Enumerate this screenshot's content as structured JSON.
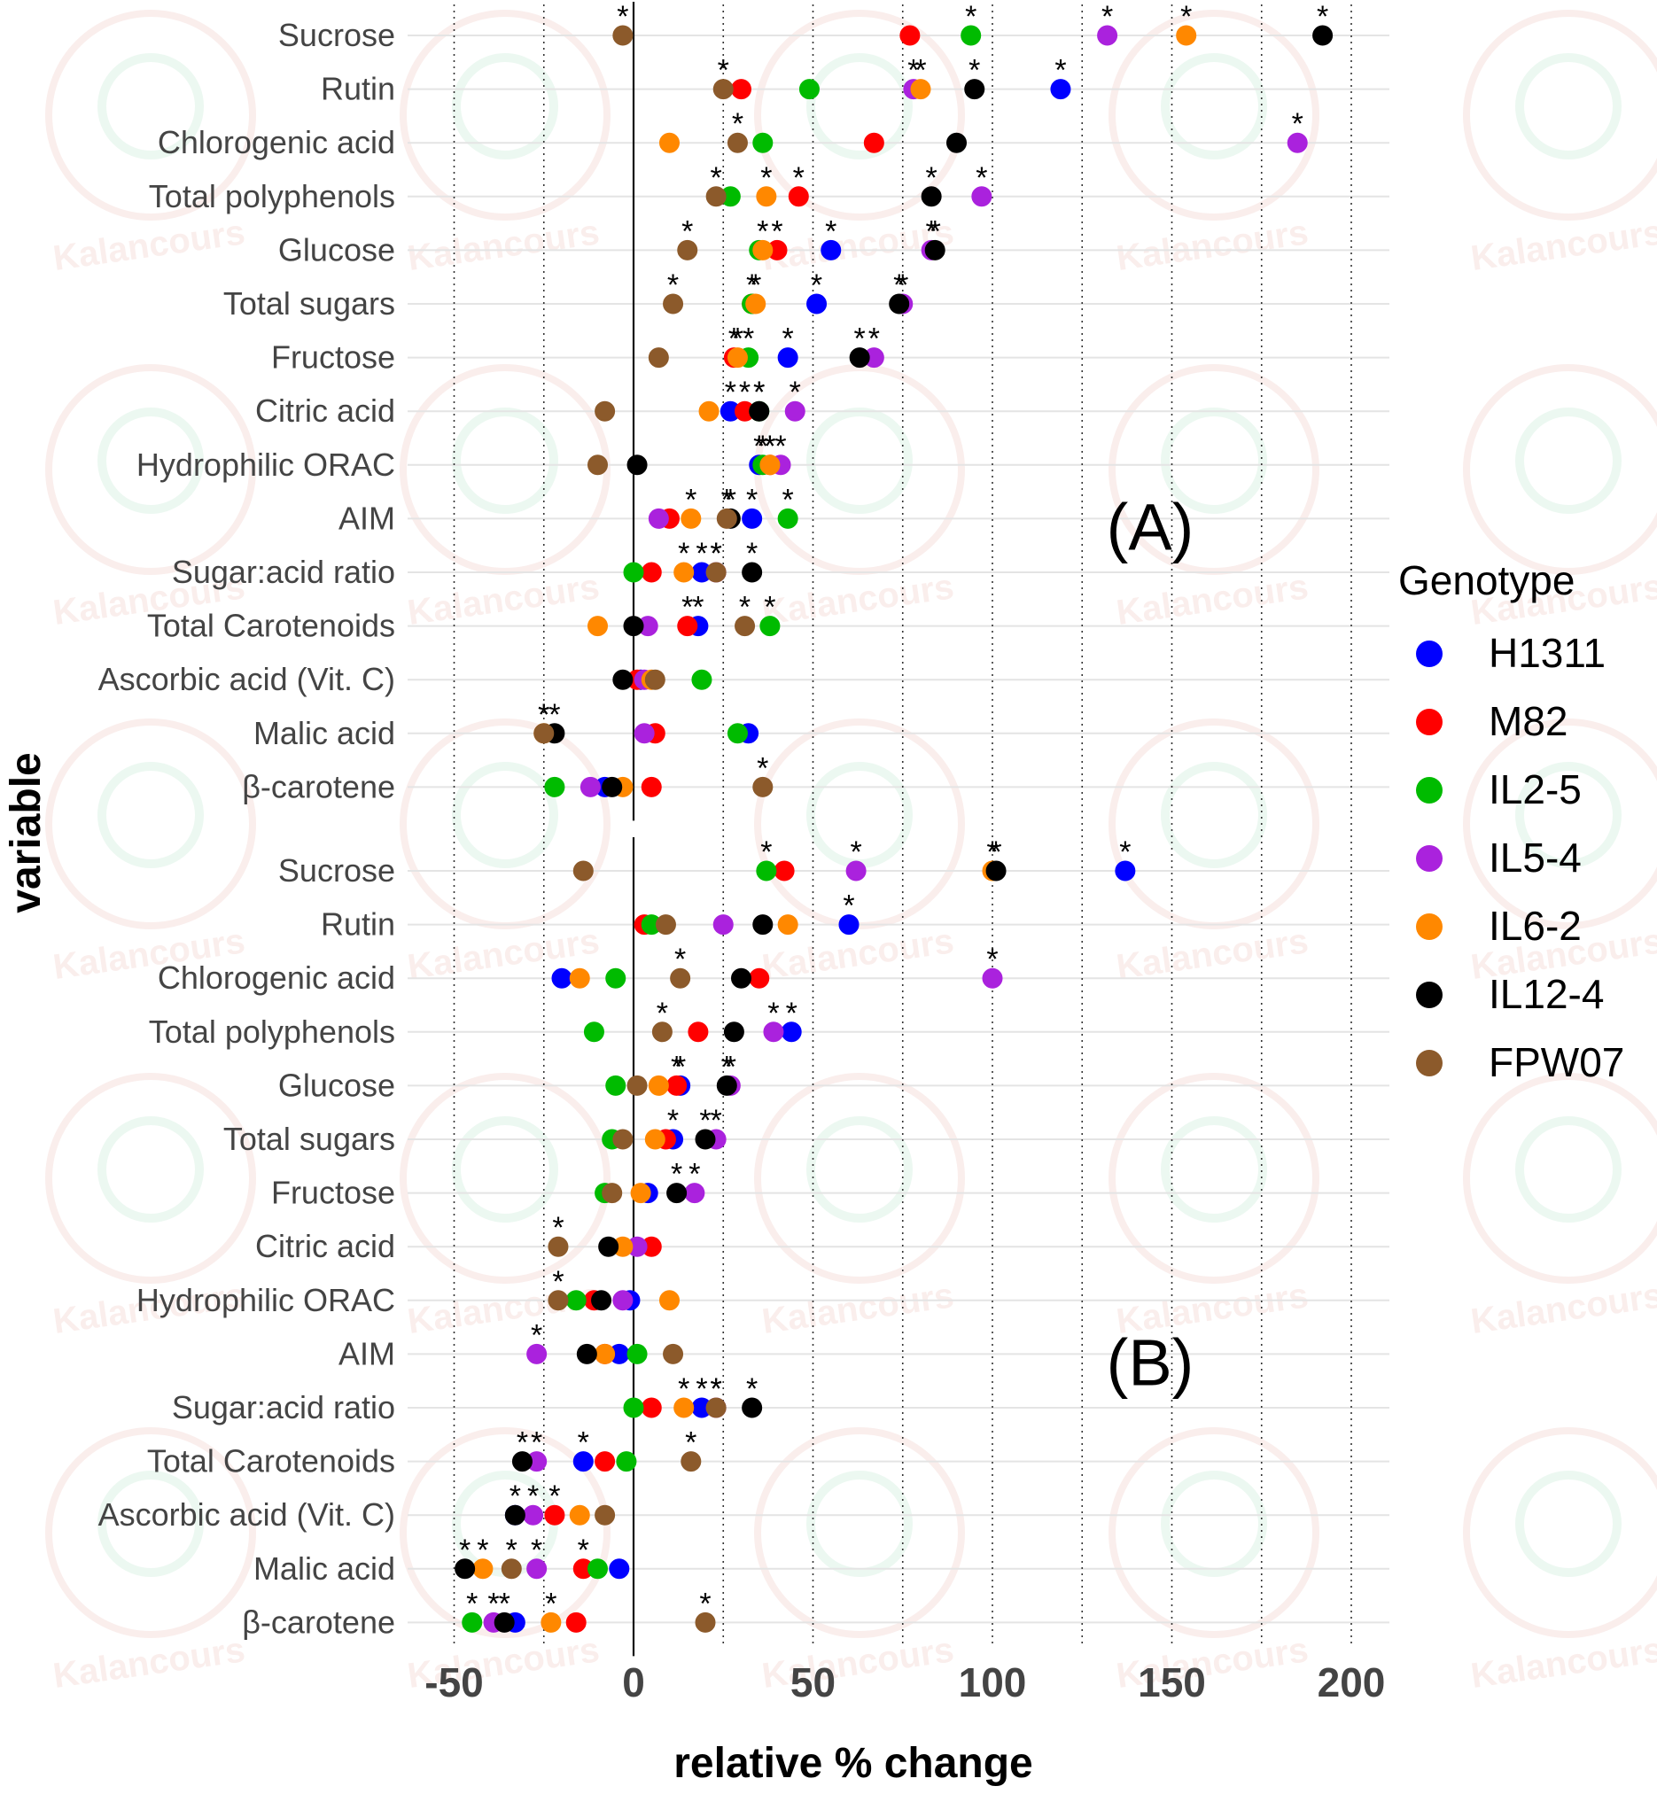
{
  "chart_data": {
    "type": "scatter",
    "xlabel": "relative % change",
    "ylabel": "variable",
    "xlim": [
      -57,
      203
    ],
    "xticks": [
      -50,
      0,
      50,
      100,
      150,
      200
    ],
    "xtick_labels": [
      "-50",
      "0",
      "50",
      "100",
      "150",
      "200"
    ],
    "grid": "horizontal lines on each variable; dotted vertical lines every 25",
    "watermark": "Kalancours",
    "legend": {
      "title": "Genotype",
      "placement": "right",
      "entries": [
        {
          "name": "H1311",
          "color": "#0000ff"
        },
        {
          "name": "M82",
          "color": "#ff0000"
        },
        {
          "name": "IL2-5",
          "color": "#00bb00"
        },
        {
          "name": "IL5-4",
          "color": "#aa22dd"
        },
        {
          "name": "IL6-2",
          "color": "#ff8800"
        },
        {
          "name": "IL12-4",
          "color": "#000000"
        },
        {
          "name": "FPW07",
          "color": "#8c5a2b"
        }
      ]
    },
    "categories": [
      "Sucrose",
      "Rutin",
      "Chlorogenic acid",
      "Total polyphenols",
      "Glucose",
      "Total sugars",
      "Fructose",
      "Citric acid",
      "Hydrophilic ORAC",
      "AIM",
      "Sugar:acid ratio",
      "Total Carotenoids",
      "Ascorbic acid (Vit. C)",
      "Malic acid",
      "β-carotene"
    ],
    "series_order": [
      "H1311",
      "M82",
      "IL2-5",
      "IL5-4",
      "IL6-2",
      "IL12-4",
      "FPW07"
    ],
    "note": "values ordered as series_order; significance lists the series marked with *",
    "panels": [
      {
        "label": "(A)",
        "rows": [
          {
            "variable": "Sucrose",
            "values": [
              null,
              77,
              94,
              132,
              154,
              192,
              -3
            ],
            "significant": [
              "IL2-5",
              "IL5-4",
              "IL6-2",
              "IL12-4",
              "FPW07"
            ]
          },
          {
            "variable": "Rutin",
            "values": [
              119,
              30,
              49,
              78,
              80,
              95,
              25
            ],
            "significant": [
              "H1311",
              "IL5-4",
              "IL6-2",
              "IL12-4",
              "FPW07"
            ]
          },
          {
            "variable": "Chlorogenic acid",
            "values": [
              null,
              67,
              36,
              185,
              10,
              90,
              29
            ],
            "significant": [
              "IL5-4",
              "FPW07"
            ]
          },
          {
            "variable": "Total polyphenols",
            "values": [
              null,
              46,
              27,
              97,
              37,
              83,
              23
            ],
            "significant": [
              "M82",
              "IL5-4",
              "IL6-2",
              "IL12-4",
              "FPW07"
            ]
          },
          {
            "variable": "Glucose",
            "values": [
              55,
              40,
              35,
              83,
              36,
              84,
              15
            ],
            "significant": [
              "H1311",
              "M82",
              "IL5-4",
              "IL6-2",
              "IL12-4",
              "FPW07"
            ]
          },
          {
            "variable": "Total sugars",
            "values": [
              51,
              33,
              33,
              75,
              34,
              74,
              11
            ],
            "significant": [
              "H1311",
              "M82",
              "IL5-4",
              "IL6-2",
              "IL12-4",
              "FPW07"
            ]
          },
          {
            "variable": "Fructose",
            "values": [
              43,
              28,
              32,
              67,
              29,
              63,
              7
            ],
            "significant": [
              "H1311",
              "M82",
              "IL2-5",
              "IL5-4",
              "IL6-2",
              "IL12-4"
            ]
          },
          {
            "variable": "Citric acid",
            "values": [
              27,
              31,
              35,
              45,
              21,
              35,
              -8
            ],
            "significant": [
              "H1311",
              "M82",
              "IL2-5",
              "IL5-4",
              "IL12-4"
            ]
          },
          {
            "variable": "Hydrophilic ORAC",
            "values": [
              35,
              38,
              36,
              41,
              38,
              1,
              -10
            ],
            "significant": [
              "H1311",
              "M82",
              "IL2-5",
              "IL5-4",
              "IL6-2"
            ]
          },
          {
            "variable": "AIM",
            "values": [
              33,
              10,
              43,
              7,
              16,
              27,
              26
            ],
            "significant": [
              "H1311",
              "IL2-5",
              "IL6-2",
              "IL12-4",
              "FPW07"
            ]
          },
          {
            "variable": "Sugar:acid ratio",
            "values": [
              19,
              5,
              0,
              23,
              14,
              33,
              23
            ],
            "significant": [
              "H1311",
              "IL5-4",
              "IL6-2",
              "IL12-4",
              "FPW07"
            ]
          },
          {
            "variable": "Total Carotenoids",
            "values": [
              18,
              15,
              38,
              4,
              -10,
              0,
              31
            ],
            "significant": [
              "H1311",
              "M82",
              "IL2-5",
              "FPW07"
            ]
          },
          {
            "variable": "Ascorbic acid (Vit. C)",
            "values": [
              2,
              1,
              19,
              3,
              5,
              -3,
              6
            ],
            "significant": []
          },
          {
            "variable": "Malic acid",
            "values": [
              32,
              6,
              29,
              3,
              -25,
              -22,
              -25
            ],
            "significant": [
              "IL6-2",
              "IL12-4",
              "FPW07"
            ]
          },
          {
            "variable": "β-carotene",
            "values": [
              -8,
              5,
              -22,
              -12,
              -3,
              -6,
              36
            ],
            "significant": [
              "FPW07"
            ]
          }
        ]
      },
      {
        "label": "(B)",
        "rows": [
          {
            "variable": "Sucrose",
            "values": [
              137,
              42,
              37,
              62,
              100,
              101,
              -14
            ],
            "significant": [
              "H1311",
              "IL2-5",
              "IL5-4",
              "IL6-2",
              "IL12-4"
            ]
          },
          {
            "variable": "Rutin",
            "values": [
              60,
              3,
              5,
              25,
              43,
              36,
              9
            ],
            "significant": [
              "H1311"
            ]
          },
          {
            "variable": "Chlorogenic acid",
            "values": [
              -20,
              35,
              -5,
              100,
              -15,
              30,
              13
            ],
            "significant": [
              "IL5-4",
              "FPW07"
            ]
          },
          {
            "variable": "Total polyphenols",
            "values": [
              44,
              18,
              -11,
              39,
              null,
              28,
              8
            ],
            "significant": [
              "H1311",
              "IL5-4",
              "FPW07"
            ]
          },
          {
            "variable": "Glucose",
            "values": [
              13,
              12,
              -5,
              27,
              7,
              26,
              1
            ],
            "significant": [
              "H1311",
              "M82",
              "IL5-4",
              "IL12-4"
            ]
          },
          {
            "variable": "Total sugars",
            "values": [
              11,
              9,
              -6,
              23,
              6,
              20,
              -3
            ],
            "significant": [
              "H1311",
              "IL5-4",
              "IL12-4"
            ]
          },
          {
            "variable": "Fructose",
            "values": [
              4,
              null,
              -8,
              17,
              2,
              12,
              -6
            ],
            "significant": [
              "IL5-4",
              "IL12-4"
            ]
          },
          {
            "variable": "Citric acid",
            "values": [
              null,
              5,
              null,
              1,
              -3,
              -7,
              -21
            ],
            "significant": [
              "FPW07"
            ]
          },
          {
            "variable": "Hydrophilic ORAC",
            "values": [
              -1,
              -11,
              -16,
              -3,
              10,
              -9,
              -21
            ],
            "significant": [
              "FPW07"
            ]
          },
          {
            "variable": "AIM",
            "values": [
              -4,
              -8,
              1,
              -27,
              -8,
              -13,
              11
            ],
            "significant": [
              "IL5-4"
            ]
          },
          {
            "variable": "Sugar:acid ratio",
            "values": [
              19,
              5,
              0,
              23,
              14,
              33,
              23
            ],
            "significant": [
              "H1311",
              "IL5-4",
              "IL6-2",
              "IL12-4",
              "FPW07"
            ]
          },
          {
            "variable": "Total Carotenoids",
            "values": [
              -14,
              -8,
              -2,
              -27,
              null,
              -31,
              16
            ],
            "significant": [
              "H1311",
              "IL5-4",
              "IL12-4",
              "FPW07"
            ]
          },
          {
            "variable": "Ascorbic acid (Vit. C)",
            "values": null,
            "values_list": [],
            "significant": [
              "M82",
              "IL5-4",
              "IL12-4"
            ],
            "points": [
              -33,
              -22,
              null,
              -28,
              -15,
              -33,
              -8
            ]
          },
          {
            "variable": "Malic acid",
            "values": [
              -4,
              -14,
              -10,
              -27,
              -42,
              -47,
              -34
            ],
            "significant": [
              "M82",
              "IL5-4",
              "IL6-2",
              "IL12-4",
              "FPW07"
            ]
          },
          {
            "variable": "β-carotene",
            "values": [
              -33,
              -16,
              -45,
              -39,
              -23,
              -36,
              20
            ],
            "significant": [
              "IL2-5",
              "IL5-4",
              "IL6-2",
              "IL12-4",
              "FPW07"
            ]
          }
        ]
      }
    ]
  }
}
